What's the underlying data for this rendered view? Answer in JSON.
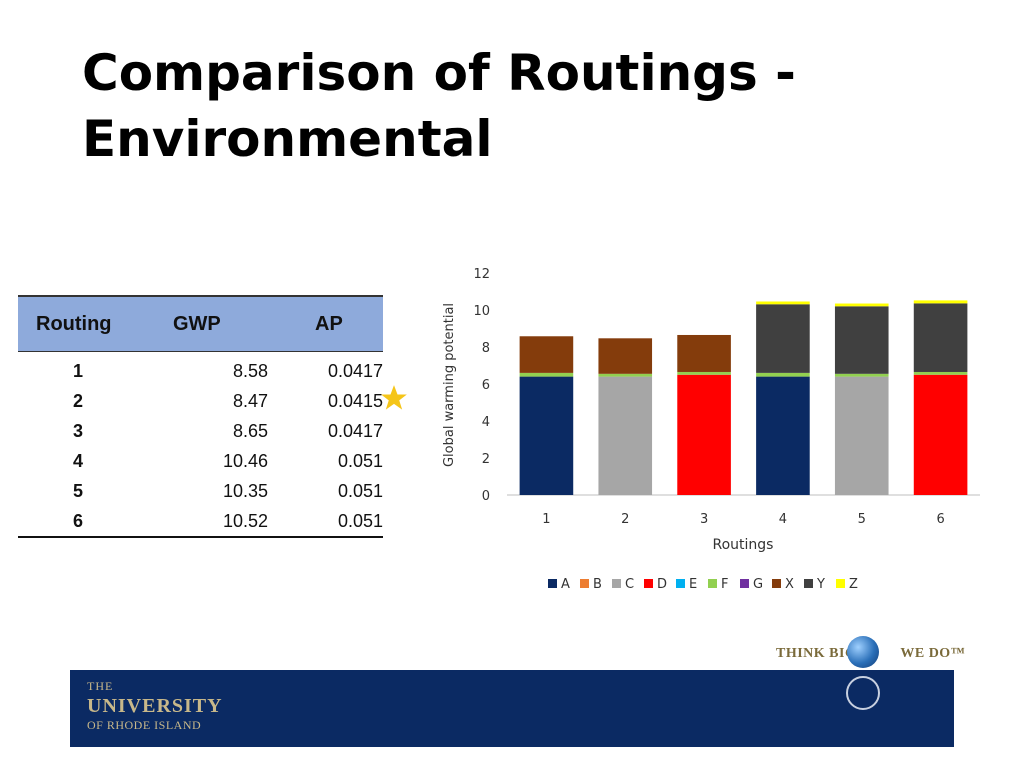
{
  "title_line1": "Comparison of Routings -",
  "title_line2": "Environmental",
  "table": {
    "headers": [
      "Routing",
      "GWP",
      "AP"
    ],
    "rows": [
      {
        "routing": "1",
        "gwp": "8.58",
        "ap": "0.0417"
      },
      {
        "routing": "2",
        "gwp": "8.47",
        "ap": "0.0415"
      },
      {
        "routing": "3",
        "gwp": "8.65",
        "ap": "0.0417"
      },
      {
        "routing": "4",
        "gwp": "10.46",
        "ap": "0.051"
      },
      {
        "routing": "5",
        "gwp": "10.35",
        "ap": "0.051"
      },
      {
        "routing": "6",
        "gwp": "10.52",
        "ap": "0.051"
      }
    ]
  },
  "chart_data": {
    "type": "bar",
    "stacked": true,
    "title": "",
    "xlabel": "Routings",
    "ylabel": "Global warming potential",
    "ylim": [
      0,
      12
    ],
    "yticks": [
      0,
      2,
      4,
      6,
      8,
      10,
      12
    ],
    "categories": [
      "1",
      "2",
      "3",
      "4",
      "5",
      "6"
    ],
    "legend_position": "bottom",
    "series": [
      {
        "name": "A",
        "color": "#0b2a63",
        "values": [
          6.4,
          0,
          0,
          6.4,
          0,
          0
        ]
      },
      {
        "name": "B",
        "color": "#ed7d31",
        "values": [
          0,
          0,
          0,
          0,
          0,
          0
        ]
      },
      {
        "name": "C",
        "color": "#a6a6a6",
        "values": [
          0,
          6.4,
          0,
          0,
          6.4,
          0
        ]
      },
      {
        "name": "D",
        "color": "#ff0000",
        "values": [
          0,
          0,
          6.5,
          0,
          0,
          6.5
        ]
      },
      {
        "name": "E",
        "color": "#00b0f0",
        "values": [
          0,
          0,
          0,
          0,
          0,
          0
        ]
      },
      {
        "name": "F",
        "color": "#92d050",
        "values": [
          0.2,
          0.15,
          0.15,
          0.2,
          0.15,
          0.15
        ]
      },
      {
        "name": "G",
        "color": "#7030a0",
        "values": [
          0,
          0,
          0,
          0,
          0,
          0
        ]
      },
      {
        "name": "X",
        "color": "#843c0c",
        "values": [
          1.98,
          1.92,
          2.0,
          0,
          0,
          0
        ]
      },
      {
        "name": "Y",
        "color": "#404040",
        "values": [
          0,
          0,
          0,
          3.71,
          3.65,
          3.71
        ]
      },
      {
        "name": "Z",
        "color": "#ffff00",
        "values": [
          0,
          0,
          0,
          0.15,
          0.15,
          0.16
        ]
      }
    ]
  },
  "footer": {
    "line1": "THE",
    "line2": "UNIVERSITY",
    "line3": "OF RHODE ISLAND",
    "tagline_left": "THINK BIG",
    "tagline_right": "WE DO™"
  }
}
